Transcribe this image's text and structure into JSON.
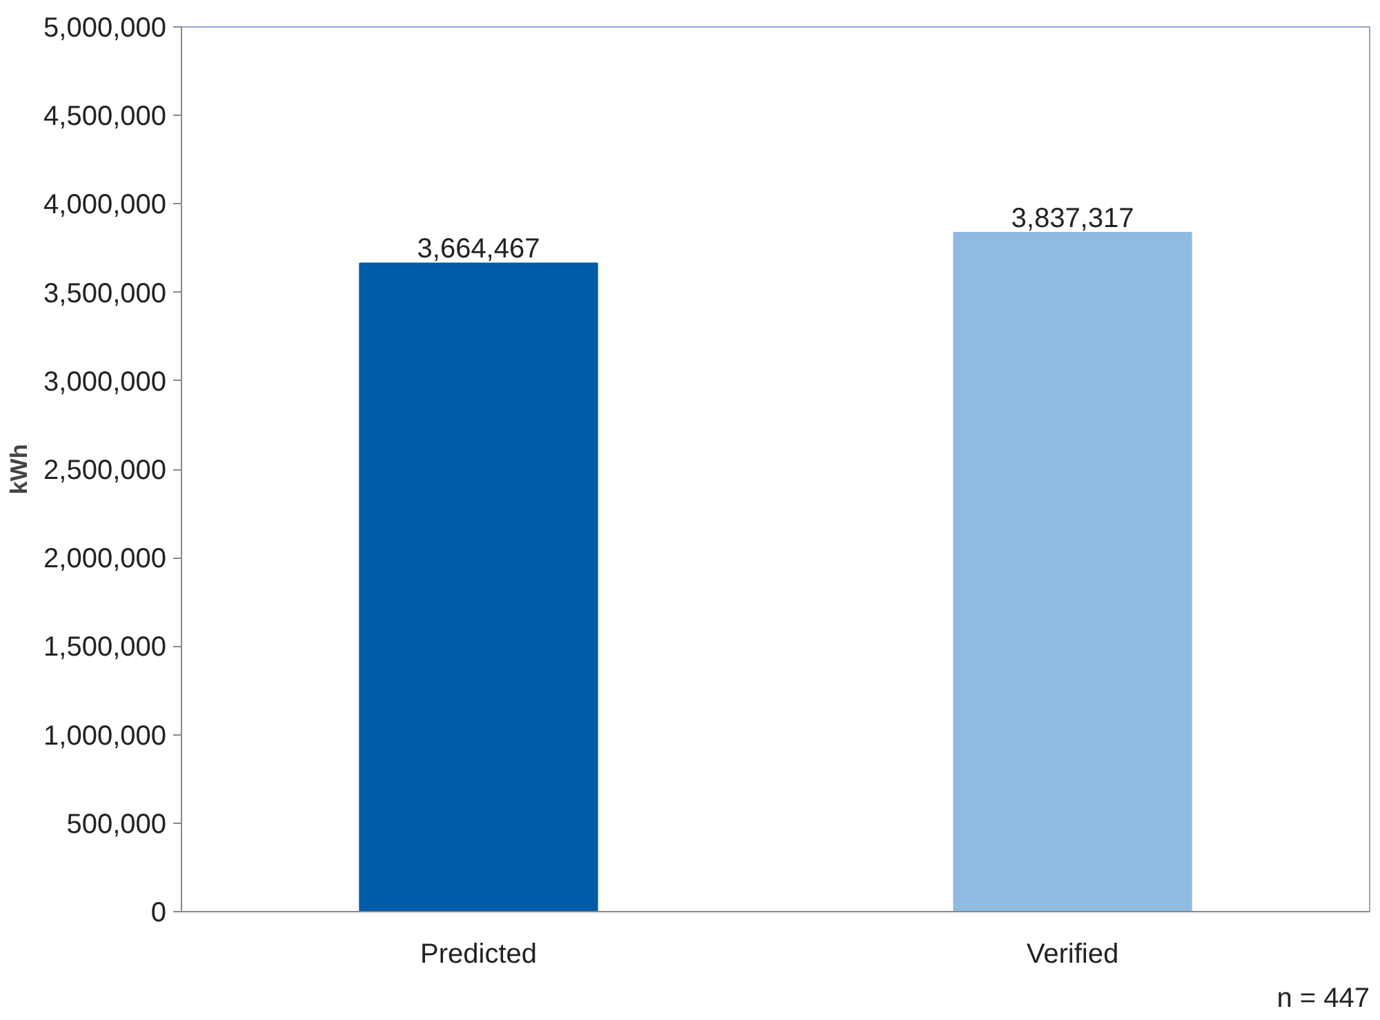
{
  "chart_data": {
    "type": "bar",
    "ylabel": "kWh",
    "categories": [
      "Predicted",
      "Verified"
    ],
    "values": [
      3664467,
      3837317
    ],
    "colors": [
      "#005ba8",
      "#8fbbe2"
    ],
    "value_labels": [
      "3,664,467",
      "3,837,317"
    ],
    "ylim": [
      0,
      5000000
    ],
    "yticks": [
      {
        "value": 0,
        "label": "0"
      },
      {
        "value": 500000,
        "label": "500,000"
      },
      {
        "value": 1000000,
        "label": "1,000,000"
      },
      {
        "value": 1500000,
        "label": "1,500,000"
      },
      {
        "value": 2000000,
        "label": "2,000,000"
      },
      {
        "value": 2500000,
        "label": "2,500,000"
      },
      {
        "value": 3000000,
        "label": "3,000,000"
      },
      {
        "value": 3500000,
        "label": "3,500,000"
      },
      {
        "value": 4000000,
        "label": "4,000,000"
      },
      {
        "value": 4500000,
        "label": "4,500,000"
      },
      {
        "value": 5000000,
        "label": "5,000,000"
      }
    ],
    "grid": false,
    "annotations": [
      "n = 447"
    ]
  }
}
